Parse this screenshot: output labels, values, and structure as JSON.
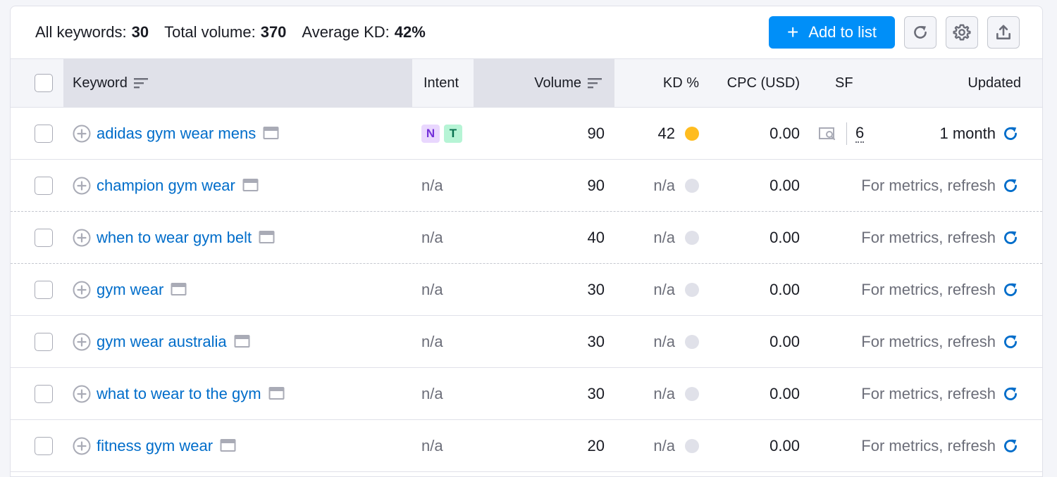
{
  "summary": {
    "all_keywords_label": "All keywords:",
    "all_keywords_value": "30",
    "total_volume_label": "Total volume:",
    "total_volume_value": "370",
    "avg_kd_label": "Average KD:",
    "avg_kd_value": "42%"
  },
  "toolbar": {
    "add_to_list_label": "Add to list",
    "add_icon": "plus-icon",
    "refresh_icon": "refresh-icon",
    "settings_icon": "gear-icon",
    "export_icon": "upload-icon"
  },
  "columns": {
    "keyword": "Keyword",
    "intent": "Intent",
    "volume": "Volume",
    "kd": "KD %",
    "cpc": "CPC (USD)",
    "sf": "SF",
    "updated": "Updated"
  },
  "colors": {
    "accent": "#008ff8",
    "link": "#006dca",
    "kd_medium": "#ffbc1f",
    "kd_na": "#e0e1e9"
  },
  "rows": [
    {
      "keyword": "adidas gym wear mens",
      "intent": [
        "N",
        "T"
      ],
      "volume": "90",
      "kd": "42",
      "kd_color": "#ffbc1f",
      "cpc": "0.00",
      "sf": "6",
      "updated": "1 month"
    },
    {
      "keyword": "champion gym wear",
      "intent_text": "n/a",
      "volume": "90",
      "kd": "n/a",
      "kd_color": "#e0e1e9",
      "cpc": "0.00",
      "updated": "For metrics, refresh"
    },
    {
      "keyword": "when to wear gym belt",
      "intent_text": "n/a",
      "volume": "40",
      "kd": "n/a",
      "kd_color": "#e0e1e9",
      "cpc": "0.00",
      "updated": "For metrics, refresh"
    },
    {
      "keyword": "gym wear",
      "intent_text": "n/a",
      "volume": "30",
      "kd": "n/a",
      "kd_color": "#e0e1e9",
      "cpc": "0.00",
      "updated": "For metrics, refresh"
    },
    {
      "keyword": "gym wear australia",
      "intent_text": "n/a",
      "volume": "30",
      "kd": "n/a",
      "kd_color": "#e0e1e9",
      "cpc": "0.00",
      "updated": "For metrics, refresh"
    },
    {
      "keyword": "what to wear to the gym",
      "intent_text": "n/a",
      "volume": "30",
      "kd": "n/a",
      "kd_color": "#e0e1e9",
      "cpc": "0.00",
      "updated": "For metrics, refresh"
    },
    {
      "keyword": "fitness gym wear",
      "intent_text": "n/a",
      "volume": "20",
      "kd": "n/a",
      "kd_color": "#e0e1e9",
      "cpc": "0.00",
      "updated": "For metrics, refresh"
    }
  ]
}
